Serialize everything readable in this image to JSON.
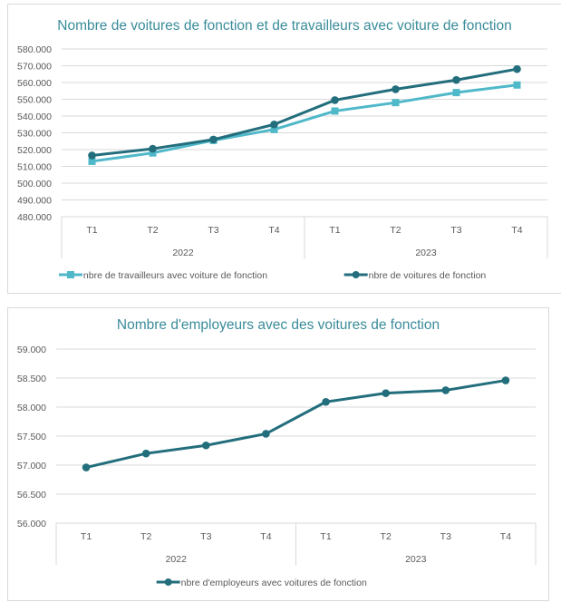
{
  "chart_data": [
    {
      "type": "line",
      "title": "Nombre de voitures de fonction et de travailleurs avec voiture de fonction",
      "xlabel": "",
      "ylabel": "",
      "categories": [
        "T1",
        "T2",
        "T3",
        "T4",
        "T1",
        "T2",
        "T3",
        "T4"
      ],
      "category_groups": [
        {
          "label": "2022",
          "span": 4
        },
        {
          "label": "2023",
          "span": 4
        }
      ],
      "ylim": [
        480000,
        580000
      ],
      "ystep": 10000,
      "ytick_labels": [
        "480.000",
        "490.000",
        "500.000",
        "510.000",
        "520.000",
        "530.000",
        "540.000",
        "550.000",
        "560.000",
        "570.000",
        "580.000"
      ],
      "grid": true,
      "legend_position": "bottom",
      "series": [
        {
          "name": "nbre de travailleurs avec voiture de fonction",
          "color": "#4fb8c9",
          "marker": "square",
          "values": [
            513000,
            518000,
            525500,
            532000,
            543000,
            548000,
            554000,
            558500
          ]
        },
        {
          "name": "nbre de voitures de fonction",
          "color": "#236e7c",
          "marker": "circle",
          "values": [
            516500,
            520500,
            526000,
            535000,
            549500,
            556000,
            561500,
            568000
          ]
        }
      ]
    },
    {
      "type": "line",
      "title": "Nombre d'employeurs avec des voitures de fonction",
      "xlabel": "",
      "ylabel": "",
      "categories": [
        "T1",
        "T2",
        "T3",
        "T4",
        "T1",
        "T2",
        "T3",
        "T4"
      ],
      "category_groups": [
        {
          "label": "2022",
          "span": 4
        },
        {
          "label": "2023",
          "span": 4
        }
      ],
      "ylim": [
        56000,
        59000
      ],
      "ystep": 500,
      "ytick_labels": [
        "56.000",
        "56.500",
        "57.000",
        "57.500",
        "58.000",
        "58.500",
        "59.000"
      ],
      "grid": true,
      "legend_position": "bottom",
      "series": [
        {
          "name": "nbre d'employeurs avec voitures de fonction",
          "color": "#236e7c",
          "marker": "circle",
          "values": [
            56960,
            57200,
            57340,
            57540,
            58090,
            58240,
            58290,
            58460
          ]
        }
      ]
    }
  ]
}
